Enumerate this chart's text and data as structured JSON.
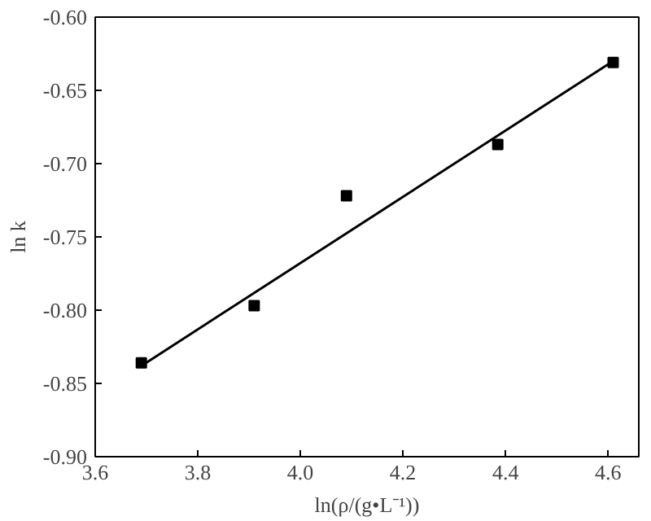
{
  "chart_data": {
    "type": "scatter",
    "xlabel": "ln(ρ/(g•L⁻¹))",
    "ylabel": "ln k",
    "xlim": [
      3.6,
      4.66
    ],
    "ylim": [
      -0.9,
      -0.6
    ],
    "xticks": [
      {
        "value": 3.6,
        "label": "3.6"
      },
      {
        "value": 3.8,
        "label": "3.8"
      },
      {
        "value": 4.0,
        "label": "4.0"
      },
      {
        "value": 4.2,
        "label": "4.2"
      },
      {
        "value": 4.4,
        "label": "4.4"
      },
      {
        "value": 4.6,
        "label": "4.6"
      }
    ],
    "yticks": [
      {
        "value": -0.9,
        "label": "-0.90"
      },
      {
        "value": -0.85,
        "label": "-0.85"
      },
      {
        "value": -0.8,
        "label": "-0.80"
      },
      {
        "value": -0.75,
        "label": "-0.75"
      },
      {
        "value": -0.7,
        "label": "-0.70"
      },
      {
        "value": -0.65,
        "label": "-0.65"
      },
      {
        "value": -0.6,
        "label": "-0.60"
      }
    ],
    "series": [
      {
        "marker": "square",
        "color": "#000000",
        "x": [
          3.69,
          3.91,
          4.09,
          4.385,
          4.61
        ],
        "values": [
          -0.836,
          -0.797,
          -0.722,
          -0.687,
          -0.631
        ]
      },
      {
        "type": "line",
        "marker": "none",
        "line_style": "solid",
        "color": "#000000",
        "x": [
          3.69,
          4.61
        ],
        "values": [
          -0.838,
          -0.63
        ]
      }
    ]
  }
}
